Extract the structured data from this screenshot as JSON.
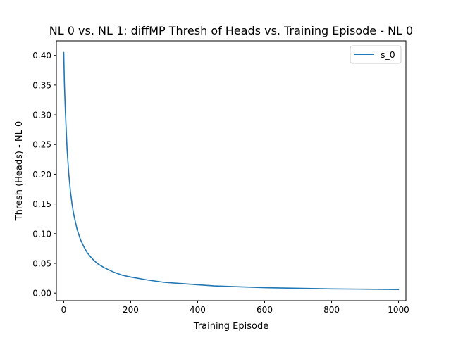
{
  "chart_data": {
    "type": "line",
    "title": "NL 0 vs. NL 1: diffMP Thresh of Heads vs. Training Episode - NL 0",
    "xlabel": "Training Episode",
    "ylabel": "Thresh (Heads) - NL 0",
    "xlim": [
      -22,
      1022
    ],
    "ylim": [
      -0.0128,
      0.4245
    ],
    "xticks": [
      0,
      200,
      400,
      600,
      800,
      1000
    ],
    "xtick_labels": [
      "0",
      "200",
      "400",
      "600",
      "800",
      "1000"
    ],
    "yticks": [
      0.0,
      0.05,
      0.1,
      0.15,
      0.2,
      0.25,
      0.3,
      0.35,
      0.4
    ],
    "ytick_labels": [
      "0.00",
      "0.05",
      "0.10",
      "0.15",
      "0.20",
      "0.25",
      "0.30",
      "0.35",
      "0.40"
    ],
    "grid": false,
    "legend_position": "upper right",
    "series": [
      {
        "name": "s_0",
        "color": "#1f77b4",
        "x": [
          0,
          2,
          5,
          10,
          15,
          20,
          25,
          30,
          40,
          50,
          60,
          70,
          80,
          90,
          100,
          120,
          150,
          175,
          200,
          250,
          300,
          350,
          400,
          450,
          500,
          600,
          700,
          800,
          900,
          1000
        ],
        "y": [
          0.405,
          0.352,
          0.304,
          0.242,
          0.201,
          0.171,
          0.149,
          0.132,
          0.107,
          0.09,
          0.078,
          0.068,
          0.061,
          0.055,
          0.05,
          0.043,
          0.035,
          0.03,
          0.027,
          0.022,
          0.018,
          0.016,
          0.014,
          0.012,
          0.011,
          0.009,
          0.008,
          0.007,
          0.0065,
          0.006
        ]
      }
    ]
  }
}
